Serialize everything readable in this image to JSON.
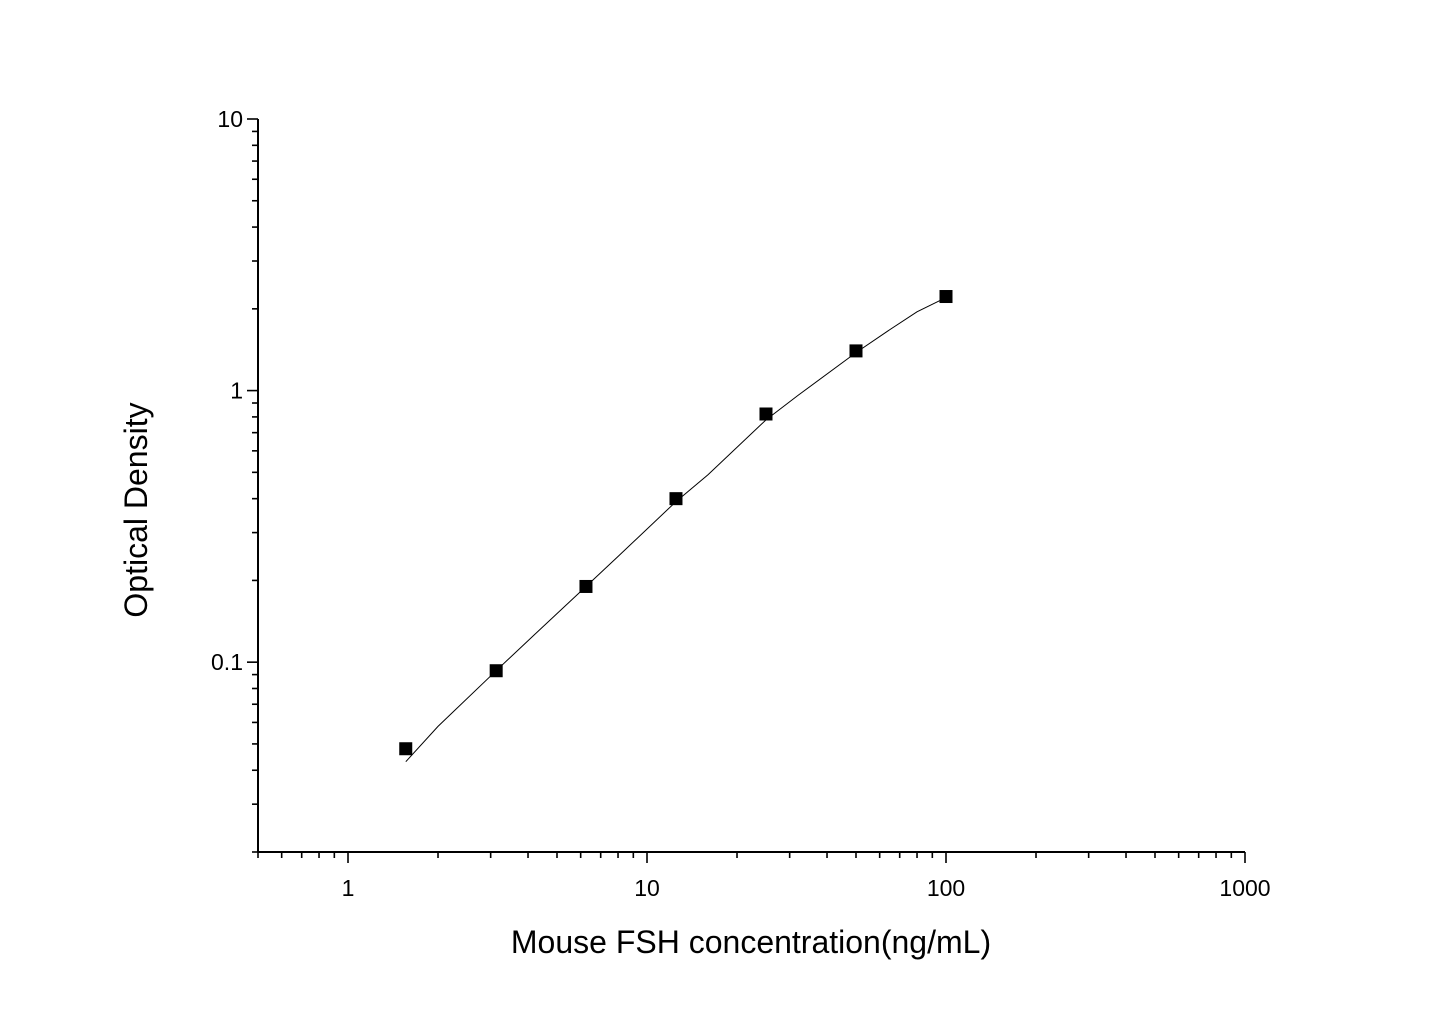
{
  "chart_data": {
    "type": "scatter",
    "title": "",
    "xlabel": "Mouse FSH concentration(ng/mL)",
    "ylabel": "Optical Density",
    "x_scale": "log",
    "y_scale": "log",
    "xlim": [
      0.5,
      1000
    ],
    "ylim": [
      0.02,
      10
    ],
    "x_ticks": [
      {
        "value": 1,
        "label": "1"
      },
      {
        "value": 10,
        "label": "10"
      },
      {
        "value": 100,
        "label": "100"
      },
      {
        "value": 1000,
        "label": "1000"
      }
    ],
    "y_ticks": [
      {
        "value": 0.1,
        "label": "0.1"
      },
      {
        "value": 1,
        "label": "1"
      },
      {
        "value": 10,
        "label": "10"
      }
    ],
    "grid": false,
    "legend": "none",
    "series": [
      {
        "marker": "square",
        "color": "#000000",
        "x": [
          1.56,
          3.13,
          6.25,
          12.5,
          25,
          50,
          100
        ],
        "y": [
          0.048,
          0.093,
          0.19,
          0.4,
          0.82,
          1.4,
          2.22
        ]
      }
    ],
    "fit_curve": {
      "color": "#000000",
      "x": [
        1.56,
        2,
        3.13,
        4,
        6.25,
        8,
        12.5,
        16,
        25,
        32,
        50,
        64,
        80,
        100
      ],
      "y": [
        0.043,
        0.058,
        0.093,
        0.12,
        0.19,
        0.245,
        0.39,
        0.49,
        0.78,
        0.96,
        1.38,
        1.66,
        1.95,
        2.2
      ]
    }
  }
}
